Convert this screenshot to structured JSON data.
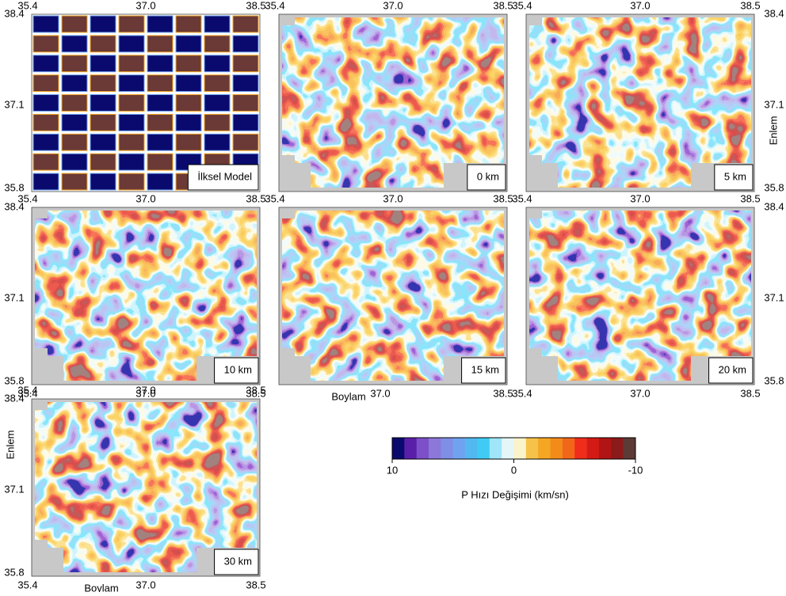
{
  "panels": [
    {
      "label": "İlksel Model"
    },
    {
      "label": "0 km"
    },
    {
      "label": "5 km"
    },
    {
      "label": "10 km"
    },
    {
      "label": "15 km"
    },
    {
      "label": "20 km"
    },
    {
      "label": "30 km"
    }
  ],
  "x_ticks": [
    "35.4",
    "37.0",
    "38.5"
  ],
  "y_ticks": [
    "38.4",
    "37.1",
    "35.8"
  ],
  "x_axis_label": "Boylam",
  "y_axis_label": "Enlem",
  "colorbar": {
    "ticks": [
      10,
      0,
      -10
    ],
    "label": "P Hızı Değişimi (km/sn)",
    "colors": [
      "#0a0a6e",
      "#5a1fa8",
      "#7d4fc9",
      "#8c78d8",
      "#7f8fe6",
      "#6fa3f0",
      "#52b9f0",
      "#3fcbf5",
      "#9fe6f8",
      "#e4f6f7",
      "#fbf3c9",
      "#f7c24a",
      "#f5a623",
      "#f38b1b",
      "#f2661a",
      "#ef2d1a",
      "#d41a14",
      "#b01414",
      "#8b1a1a",
      "#5c3a36"
    ]
  }
}
